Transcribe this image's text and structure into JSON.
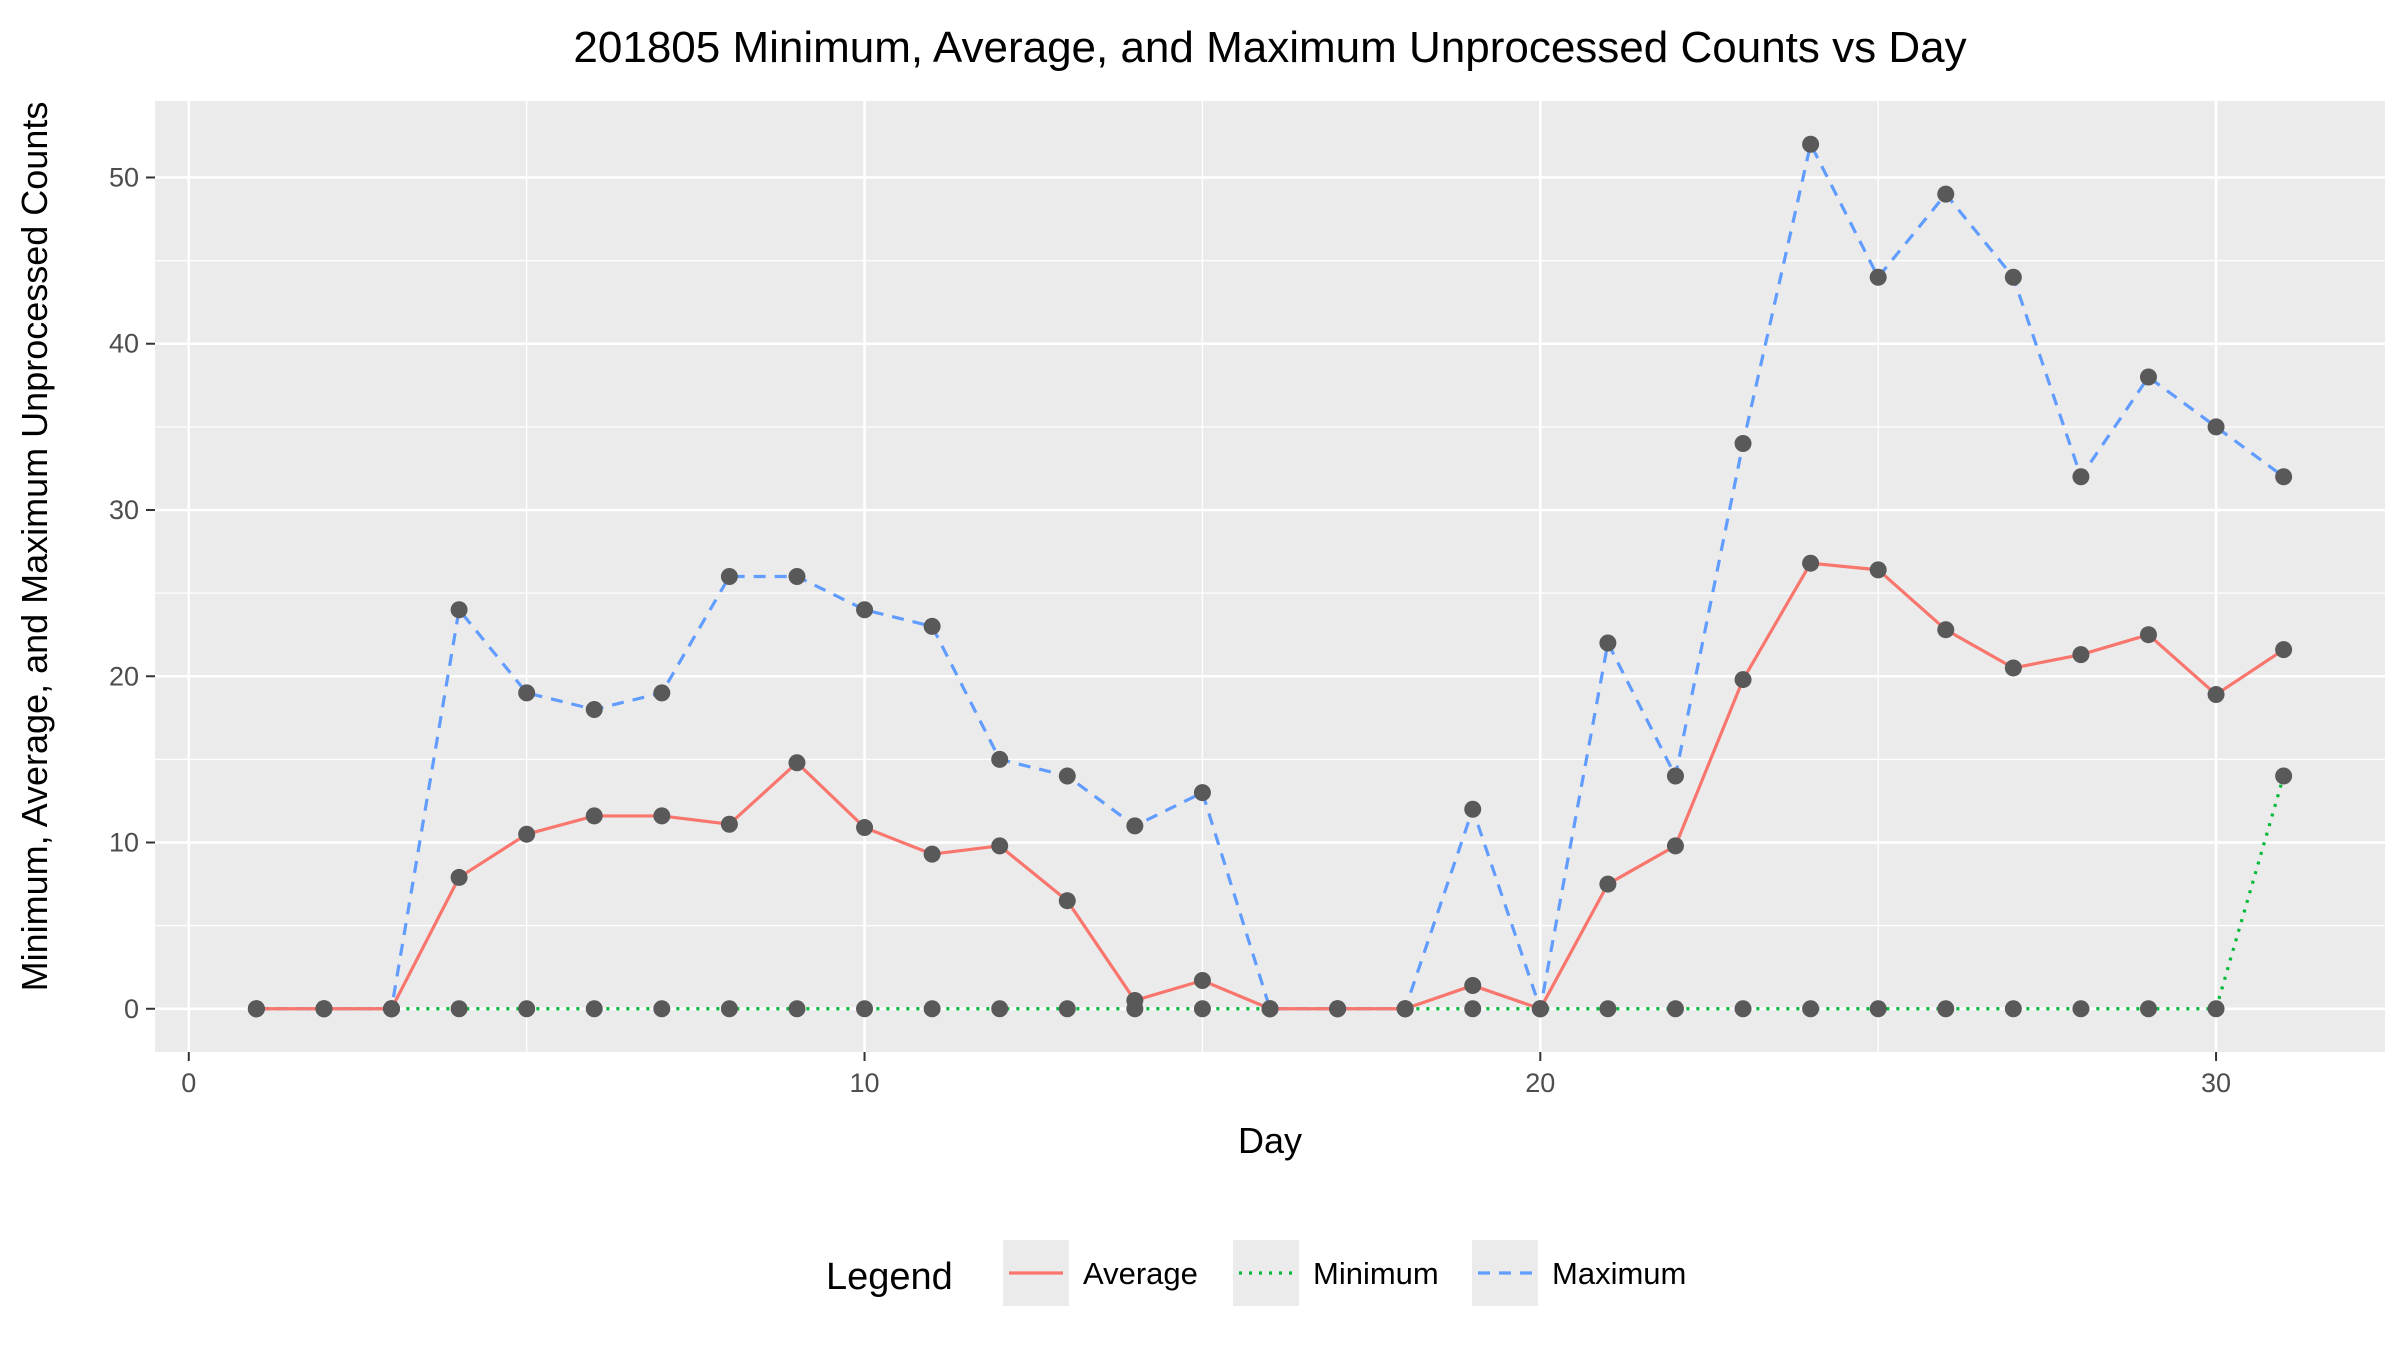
{
  "chart_data": {
    "type": "line",
    "title": "201805 Minimum, Average, and Maximum Unprocessed Counts vs Day",
    "xlabel": "Day",
    "ylabel": "Minimum, Average, and Maximum Unprocessed Counts",
    "xlim": [
      -0.5,
      32.5
    ],
    "ylim": [
      -2.6,
      54.6
    ],
    "x_ticks": [
      0,
      10,
      20,
      30
    ],
    "y_ticks": [
      0,
      10,
      20,
      30,
      40,
      50
    ],
    "x_tick_labels": [
      "0",
      "10",
      "20",
      "30"
    ],
    "y_tick_labels": [
      "0",
      "10",
      "20",
      "30",
      "40",
      "50"
    ],
    "grid": true,
    "legend_position": "bottom",
    "legend_title": "Legend",
    "x": [
      1,
      2,
      3,
      4,
      5,
      6,
      7,
      8,
      9,
      10,
      11,
      12,
      13,
      14,
      15,
      16,
      17,
      18,
      19,
      20,
      21,
      22,
      23,
      24,
      25,
      26,
      27,
      28,
      29,
      30,
      31
    ],
    "series": [
      {
        "name": "Average",
        "color": "#F8766D",
        "dash": "solid",
        "values": [
          0,
          0,
          0,
          7.9,
          10.5,
          11.6,
          11.6,
          11.1,
          14.8,
          10.9,
          9.3,
          9.8,
          6.5,
          0.5,
          1.7,
          0,
          0,
          0,
          1.4,
          0,
          7.5,
          9.8,
          19.8,
          26.8,
          26.4,
          22.8,
          20.5,
          21.3,
          22.5,
          18.9,
          21.6
        ]
      },
      {
        "name": "Minimum",
        "color": "#00BA38",
        "dash": "dotted",
        "values": [
          0,
          0,
          0,
          0,
          0,
          0,
          0,
          0,
          0,
          0,
          0,
          0,
          0,
          0,
          0,
          0,
          0,
          0,
          0,
          0,
          0,
          0,
          0,
          0,
          0,
          0,
          0,
          0,
          0,
          0,
          14
        ]
      },
      {
        "name": "Maximum",
        "color": "#619CFF",
        "dash": "dashed",
        "values": [
          0,
          0,
          0,
          24,
          19,
          18,
          19,
          26,
          26,
          24,
          23,
          15,
          14,
          11,
          13,
          0,
          0,
          0,
          12,
          0,
          22,
          14,
          34,
          52,
          44,
          49,
          44,
          32,
          38,
          35,
          32
        ]
      }
    ],
    "point_color": "#595959"
  }
}
